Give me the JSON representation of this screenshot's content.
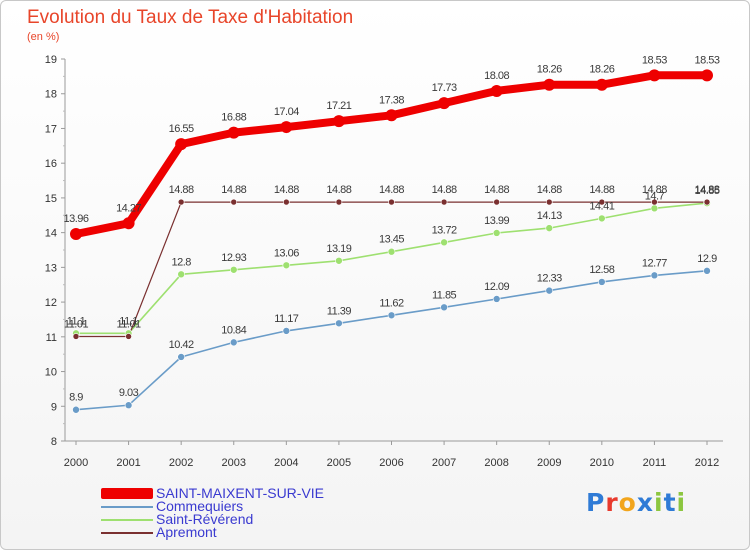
{
  "title": "Evolution du Taux de Taxe d'Habitation",
  "subtitle": "(en %)",
  "brand": {
    "text": "Proxiti",
    "letter_colors": [
      "#2f7bd6",
      "#e83a2d",
      "#f2a51c",
      "#2f7bd6",
      "#8cc63f",
      "#2f7bd6",
      "#8cc63f"
    ]
  },
  "chart_data": {
    "type": "line",
    "x": [
      "2000",
      "2001",
      "2002",
      "2003",
      "2004",
      "2005",
      "2006",
      "2007",
      "2008",
      "2009",
      "2010",
      "2011",
      "2012"
    ],
    "ylim": [
      8,
      19
    ],
    "yticks": [
      "8",
      "9",
      "10",
      "11",
      "12",
      "13",
      "14",
      "15",
      "16",
      "17",
      "18",
      "19"
    ],
    "grid": false,
    "legend_position": "bottom-left",
    "series": [
      {
        "name": "SAINT-MAIXENT-SUR-VIE",
        "color": "#ee0000",
        "values": [
          13.96,
          14.27,
          16.55,
          16.88,
          17.04,
          17.21,
          17.38,
          17.73,
          18.08,
          18.26,
          18.26,
          18.53,
          18.53
        ],
        "labels": [
          "13.96",
          "14.27",
          "16.55",
          "16.88",
          "17.04",
          "17.21",
          "17.38",
          "17.73",
          "18.08",
          "18.26",
          "18.26",
          "18.53",
          "18.53"
        ]
      },
      {
        "name": "Commequiers",
        "color": "#6a9cc8",
        "values": [
          8.9,
          9.03,
          10.42,
          10.84,
          11.17,
          11.39,
          11.62,
          11.85,
          12.09,
          12.33,
          12.58,
          12.77,
          12.9
        ],
        "labels": [
          "8.9",
          "9.03",
          "10.42",
          "10.84",
          "11.17",
          "11.39",
          "11.62",
          "11.85",
          "12.09",
          "12.33",
          "12.58",
          "12.77",
          "12.9"
        ]
      },
      {
        "name": "Saint-Révérend",
        "color": "#9ee070",
        "values": [
          11.1,
          11.1,
          12.8,
          12.93,
          13.06,
          13.19,
          13.45,
          13.72,
          13.99,
          14.13,
          14.41,
          14.7,
          14.85
        ],
        "labels": [
          "11.1",
          "11.1",
          "12.8",
          "12.93",
          "13.06",
          "13.19",
          "13.45",
          "13.72",
          "13.99",
          "14.13",
          "14.41",
          "14.7",
          "14.85"
        ]
      },
      {
        "name": "Apremont",
        "color": "#7a3030",
        "values": [
          11.01,
          11.01,
          14.88,
          14.88,
          14.88,
          14.88,
          14.88,
          14.88,
          14.88,
          14.88,
          14.88,
          14.88,
          14.88
        ],
        "labels": [
          "11.01",
          "11.01",
          "14.88",
          "14.88",
          "14.88",
          "14.88",
          "14.88",
          "14.88",
          "14.88",
          "14.88",
          "14.88",
          "14.88",
          "14.88"
        ]
      }
    ]
  }
}
